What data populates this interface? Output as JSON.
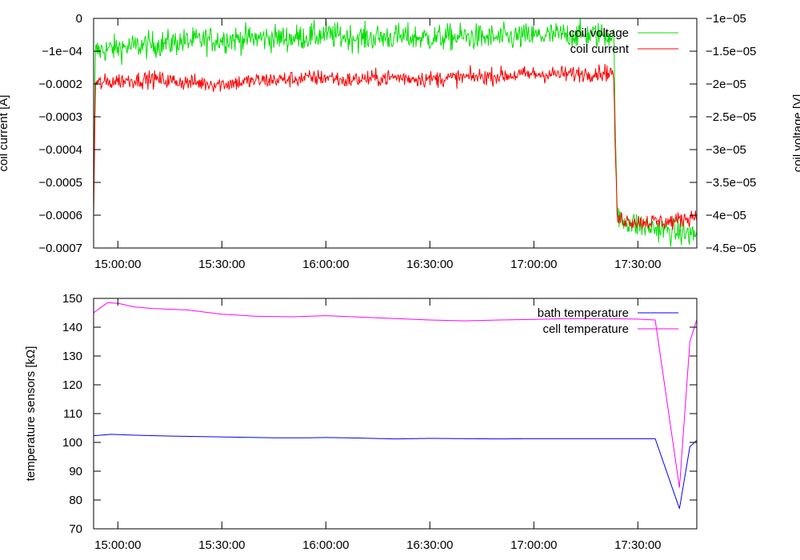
{
  "chart_data": [
    {
      "type": "line",
      "xlabel": "",
      "ylabel": "coil current [A]",
      "y2label": "coil voltage [V]",
      "xlim": [
        "14:53:00",
        "17:47:00"
      ],
      "ylim": [
        -0.0007,
        0
      ],
      "y2lim": [
        -4.5e-05,
        -1e-05
      ],
      "x_ticks": [
        "15:00:00",
        "15:30:00",
        "16:00:00",
        "16:30:00",
        "17:00:00",
        "17:30:00"
      ],
      "y_ticks": [
        "0",
        "−1e−04",
        "−0.0002",
        "−0.0003",
        "−0.0004",
        "−0.0005",
        "−0.0006",
        "−0.0007"
      ],
      "y2_ticks": [
        "−1e−05",
        "−1.5e−05",
        "−2e−05",
        "−2.5e−05",
        "−3e−05",
        "−3.5e−05",
        "−4e−05",
        "−4.5e−05"
      ],
      "legend_position": "top-right",
      "grid": false,
      "series": [
        {
          "name": "coil voltage",
          "axis": "right",
          "color": "#00e000",
          "x": [
            "14:53:00",
            "14:53:30",
            "15:00:00",
            "15:10:00",
            "15:20:00",
            "15:30:00",
            "15:40:00",
            "15:50:00",
            "16:00:00",
            "16:10:00",
            "16:20:00",
            "16:30:00",
            "16:40:00",
            "16:50:00",
            "17:00:00",
            "17:10:00",
            "17:20:00",
            "17:23:00",
            "17:23:30",
            "17:24:00",
            "17:30:00",
            "17:40:00",
            "17:47:00"
          ],
          "values": [
            -4e-05,
            -1.5e-05,
            -1.45e-05,
            -1.4e-05,
            -1.35e-05,
            -1.32e-05,
            -1.3e-05,
            -1.3e-05,
            -1.25e-05,
            -1.3e-05,
            -1.28e-05,
            -1.3e-05,
            -1.28e-05,
            -1.3e-05,
            -1.27e-05,
            -1.25e-05,
            -1.25e-05,
            -1.25e-05,
            -2.5e-05,
            -4.05e-05,
            -4.15e-05,
            -4.25e-05,
            -4.3e-05
          ],
          "noise": 2e-06
        },
        {
          "name": "coil current",
          "axis": "left",
          "color": "#ff0000",
          "x": [
            "14:53:00",
            "14:53:30",
            "15:00:00",
            "15:10:00",
            "15:20:00",
            "15:30:00",
            "15:40:00",
            "15:50:00",
            "16:00:00",
            "16:02:00",
            "16:05:00",
            "16:10:00",
            "16:20:00",
            "16:30:00",
            "16:40:00",
            "16:50:00",
            "17:00:00",
            "17:10:00",
            "17:20:00",
            "17:23:00",
            "17:23:30",
            "17:24:00",
            "17:30:00",
            "17:40:00",
            "17:47:00"
          ],
          "values": [
            -0.0006,
            -0.0002,
            -0.00019,
            -0.000185,
            -0.000195,
            -0.0002,
            -0.00019,
            -0.000185,
            -0.00018,
            -0.00018,
            -0.00019,
            -0.000185,
            -0.00018,
            -0.000185,
            -0.00018,
            -0.000175,
            -0.00017,
            -0.00017,
            -0.000165,
            -0.000165,
            -0.0004,
            -0.00061,
            -0.00062,
            -0.00062,
            -0.0006
          ],
          "noise": 2.5e-05
        }
      ]
    },
    {
      "type": "line",
      "xlabel": "",
      "ylabel": "temperature sensors [kΩ]",
      "xlim": [
        "14:53:00",
        "17:47:00"
      ],
      "ylim": [
        70,
        150
      ],
      "x_ticks": [
        "15:00:00",
        "15:30:00",
        "16:00:00",
        "16:30:00",
        "17:00:00",
        "17:30:00"
      ],
      "y_ticks": [
        "150",
        "140",
        "130",
        "120",
        "110",
        "100",
        "90",
        "80",
        "70"
      ],
      "legend_position": "top-right",
      "grid": false,
      "series": [
        {
          "name": "bath temperature",
          "color": "#0000ff",
          "x": [
            "14:53:00",
            "14:58:00",
            "15:05:00",
            "15:15:00",
            "15:25:00",
            "15:35:00",
            "15:45:00",
            "15:55:00",
            "16:00:00",
            "16:10:00",
            "16:20:00",
            "16:30:00",
            "16:40:00",
            "16:50:00",
            "17:00:00",
            "17:10:00",
            "17:20:00",
            "17:30:00",
            "17:35:00",
            "17:42:00",
            "17:45:00",
            "17:47:00"
          ],
          "values": [
            102.3,
            102.8,
            102.5,
            102.2,
            102.0,
            101.8,
            101.6,
            101.6,
            101.7,
            101.5,
            101.2,
            101.4,
            101.3,
            101.2,
            101.3,
            101.3,
            101.3,
            101.3,
            101.3,
            77.0,
            98.5,
            100.7
          ]
        },
        {
          "name": "cell temperature",
          "color": "#ff00ff",
          "x": [
            "14:53:00",
            "14:57:00",
            "15:00:00",
            "15:05:00",
            "15:10:00",
            "15:20:00",
            "15:30:00",
            "15:40:00",
            "15:50:00",
            "16:00:00",
            "16:10:00",
            "16:20:00",
            "16:30:00",
            "16:40:00",
            "16:50:00",
            "17:00:00",
            "17:10:00",
            "17:20:00",
            "17:30:00",
            "17:35:00",
            "17:42:00",
            "17:45:00",
            "17:47:00"
          ],
          "values": [
            145.0,
            148.5,
            148.3,
            147.0,
            146.5,
            146.0,
            144.5,
            143.8,
            143.6,
            144.0,
            143.5,
            143.0,
            142.5,
            142.2,
            142.5,
            142.7,
            143.0,
            143.0,
            142.8,
            142.5,
            84.3,
            135.0,
            142.6
          ]
        }
      ]
    }
  ]
}
